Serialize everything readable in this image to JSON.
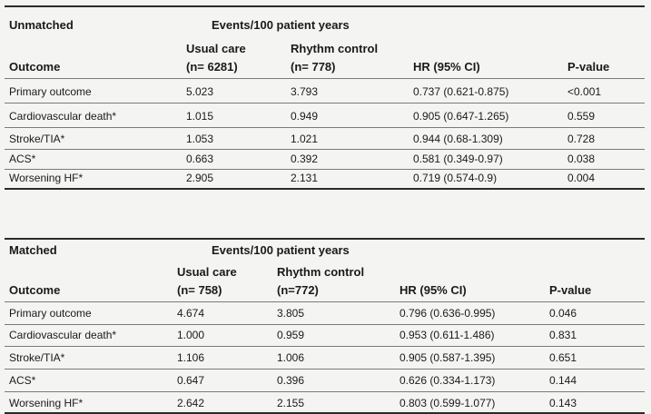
{
  "tables": [
    {
      "label": "Unmatched",
      "events_header": "Events/100 patient years",
      "columns": {
        "outcome": "Outcome",
        "usual_care": "Usual care",
        "usual_care_n": "(n= 6281)",
        "rhythm": "Rhythm control",
        "rhythm_n": "(n= 778)",
        "hr": "HR (95% CI)",
        "p": "P-value"
      },
      "rows": [
        {
          "outcome": "Primary outcome",
          "usual_care": "5.023",
          "rhythm": "3.793",
          "hr": "0.737 (0.621-0.875)",
          "p": "<0.001"
        },
        {
          "outcome": "Cardiovascular death*",
          "usual_care": "1.015",
          "rhythm": "0.949",
          "hr": "0.905 (0.647-1.265)",
          "p": "0.559"
        },
        {
          "outcome": "Stroke/TIA*",
          "usual_care": "1.053",
          "rhythm": "1.021",
          "hr": "0.944 (0.68-1.309)",
          "p": "0.728"
        },
        {
          "outcome": "ACS*",
          "usual_care": "0.663",
          "rhythm": "0.392",
          "hr": "0.581 (0.349-0.97)",
          "p": "0.038"
        },
        {
          "outcome": "Worsening HF*",
          "usual_care": "2.905",
          "rhythm": "2.131",
          "hr": "0.719 (0.574-0.9)",
          "p": "0.004"
        }
      ]
    },
    {
      "label": "Matched",
      "events_header": "Events/100 patient years",
      "columns": {
        "outcome": "Outcome",
        "usual_care": "Usual care",
        "usual_care_n": "(n= 758)",
        "rhythm": "Rhythm control",
        "rhythm_n": "(n=772)",
        "hr": "HR (95% CI)",
        "p": "P-value"
      },
      "rows": [
        {
          "outcome": "Primary outcome",
          "usual_care": "4.674",
          "rhythm": "3.805",
          "hr": "0.796 (0.636-0.995)",
          "p": "0.046"
        },
        {
          "outcome": "Cardiovascular death*",
          "usual_care": "1.000",
          "rhythm": "0.959",
          "hr": "0.953 (0.611-1.486)",
          "p": "0.831"
        },
        {
          "outcome": "Stroke/TIA*",
          "usual_care": "1.106",
          "rhythm": "1.006",
          "hr": "0.905 (0.587-1.395)",
          "p": "0.651"
        },
        {
          "outcome": "ACS*",
          "usual_care": "0.647",
          "rhythm": "0.396",
          "hr": "0.626 (0.334-1.173)",
          "p": "0.144"
        },
        {
          "outcome": "Worsening HF*",
          "usual_care": "2.642",
          "rhythm": "2.155",
          "hr": "0.803 (0.599-1.077)",
          "p": "0.143"
        }
      ]
    }
  ]
}
